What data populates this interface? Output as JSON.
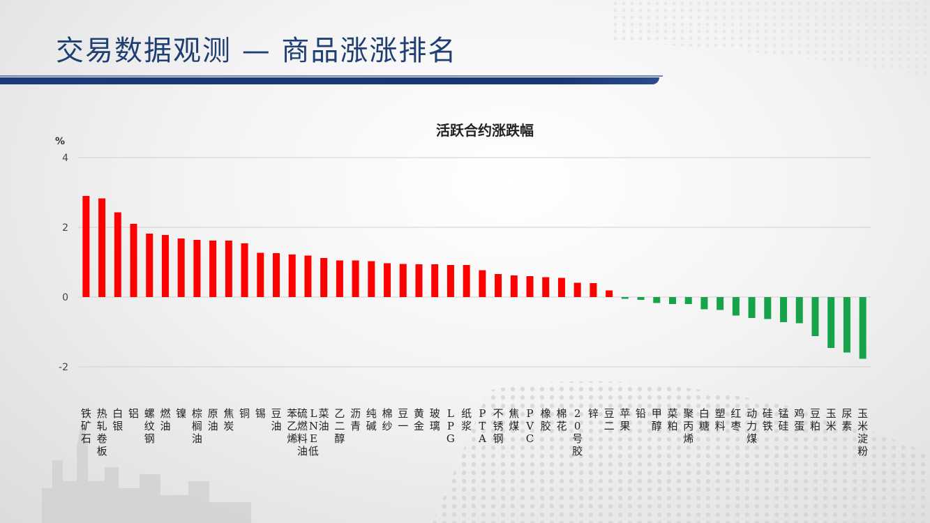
{
  "slide": {
    "title": "交易数据观测 — 商品涨涨排名"
  },
  "colors": {
    "up": "#ff0000",
    "down": "#17a34a",
    "title": "#1f3f73",
    "accent_bar": "#1c3a78"
  },
  "chart_data": {
    "type": "bar",
    "title": "活跃合约涨跌幅",
    "ylabel": "%",
    "xlabel": "",
    "ylim": [
      -2,
      4
    ],
    "yticks": [
      -2,
      0,
      2,
      4
    ],
    "grid": true,
    "categories": [
      "铁矿石",
      "热轧卷板",
      "白银",
      "铝",
      "螺纹钢",
      "燃油",
      "镍",
      "棕榈油",
      "原油",
      "焦炭",
      "铜",
      "锡",
      "豆油",
      "苯乙烯",
      "LNE低硫燃料油",
      "菜油",
      "乙二醇",
      "沥青",
      "纯碱",
      "棉纱",
      "豆一",
      "黄金",
      "玻璃",
      "LPG",
      "纸浆",
      "PTA",
      "不锈钢",
      "焦煤",
      "PVC",
      "橡胶",
      "棉花",
      "20号胶",
      "锌",
      "豆二",
      "苹果",
      "铅",
      "甲醇",
      "菜粕",
      "聚丙烯",
      "白糖",
      "塑料",
      "红枣",
      "动力煤",
      "硅铁",
      "锰硅",
      "鸡蛋",
      "豆粕",
      "玉米",
      "尿素",
      "玉米淀粉"
    ],
    "values": [
      2.9,
      2.83,
      2.43,
      2.1,
      1.82,
      1.78,
      1.68,
      1.64,
      1.62,
      1.62,
      1.54,
      1.27,
      1.26,
      1.22,
      1.19,
      1.12,
      1.05,
      1.05,
      1.03,
      0.97,
      0.95,
      0.94,
      0.94,
      0.92,
      0.92,
      0.77,
      0.66,
      0.62,
      0.6,
      0.57,
      0.55,
      0.41,
      0.4,
      0.19,
      -0.05,
      -0.08,
      -0.17,
      -0.2,
      -0.2,
      -0.35,
      -0.37,
      -0.53,
      -0.6,
      -0.63,
      -0.72,
      -0.75,
      -1.12,
      -1.46,
      -1.59,
      -1.77
    ]
  }
}
